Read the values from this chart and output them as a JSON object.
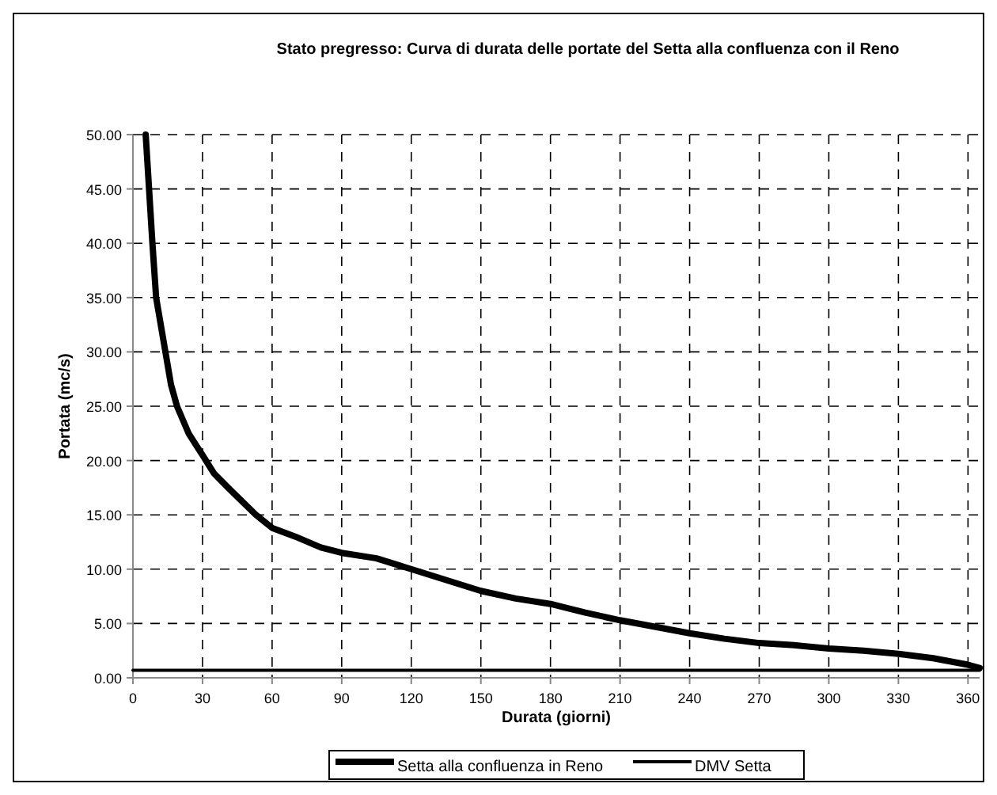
{
  "chart_data": {
    "type": "line",
    "title": "Stato pregresso: Curva di durata delle portate del Setta alla confluenza con il Reno",
    "xlabel": "Durata (giorni)",
    "ylabel": "Portata (mc/s)",
    "xlim": [
      0,
      365
    ],
    "xticks": [
      0,
      30,
      60,
      90,
      120,
      150,
      180,
      210,
      240,
      270,
      300,
      330,
      360
    ],
    "ylim": [
      0,
      50
    ],
    "yticks": [
      {
        "value": 0,
        "label": "0.00"
      },
      {
        "value": 5,
        "label": "5.00"
      },
      {
        "value": 10,
        "label": "10.00"
      },
      {
        "value": 15,
        "label": "15.00"
      },
      {
        "value": 20,
        "label": "20.00"
      },
      {
        "value": 25,
        "label": "25.00"
      },
      {
        "value": 30,
        "label": "30.00"
      },
      {
        "value": 35,
        "label": "35.00"
      },
      {
        "value": 40,
        "label": "40.00"
      },
      {
        "value": 45,
        "label": "45.00"
      },
      {
        "value": 50,
        "label": "50.00"
      }
    ],
    "grid": true,
    "legend": "bottom",
    "marker": "none",
    "series": [
      {
        "name": "Setta alla confluenza in Reno",
        "color": "#000000",
        "x": [
          5.5,
          8.4,
          10,
          14,
          16.4,
          19,
          24,
          30,
          35,
          41,
          53,
          60,
          70,
          81,
          90,
          105,
          120,
          135,
          150,
          165,
          180,
          195,
          210,
          225,
          240,
          255,
          270,
          285,
          300,
          315,
          330,
          345,
          360,
          365
        ],
        "values": [
          50,
          40,
          35,
          30,
          27,
          25,
          22.5,
          20.5,
          18.8,
          17.5,
          15,
          13.8,
          13,
          12,
          11.5,
          11,
          10,
          9,
          8,
          7.3,
          6.8,
          6,
          5.3,
          4.7,
          4.1,
          3.6,
          3.2,
          3,
          2.7,
          2.5,
          2.2,
          1.8,
          1.2,
          0.9
        ]
      },
      {
        "name": "DMV Setta",
        "color": "#000000",
        "x": [
          0,
          365
        ],
        "values": [
          0.7,
          0.7
        ]
      }
    ]
  }
}
